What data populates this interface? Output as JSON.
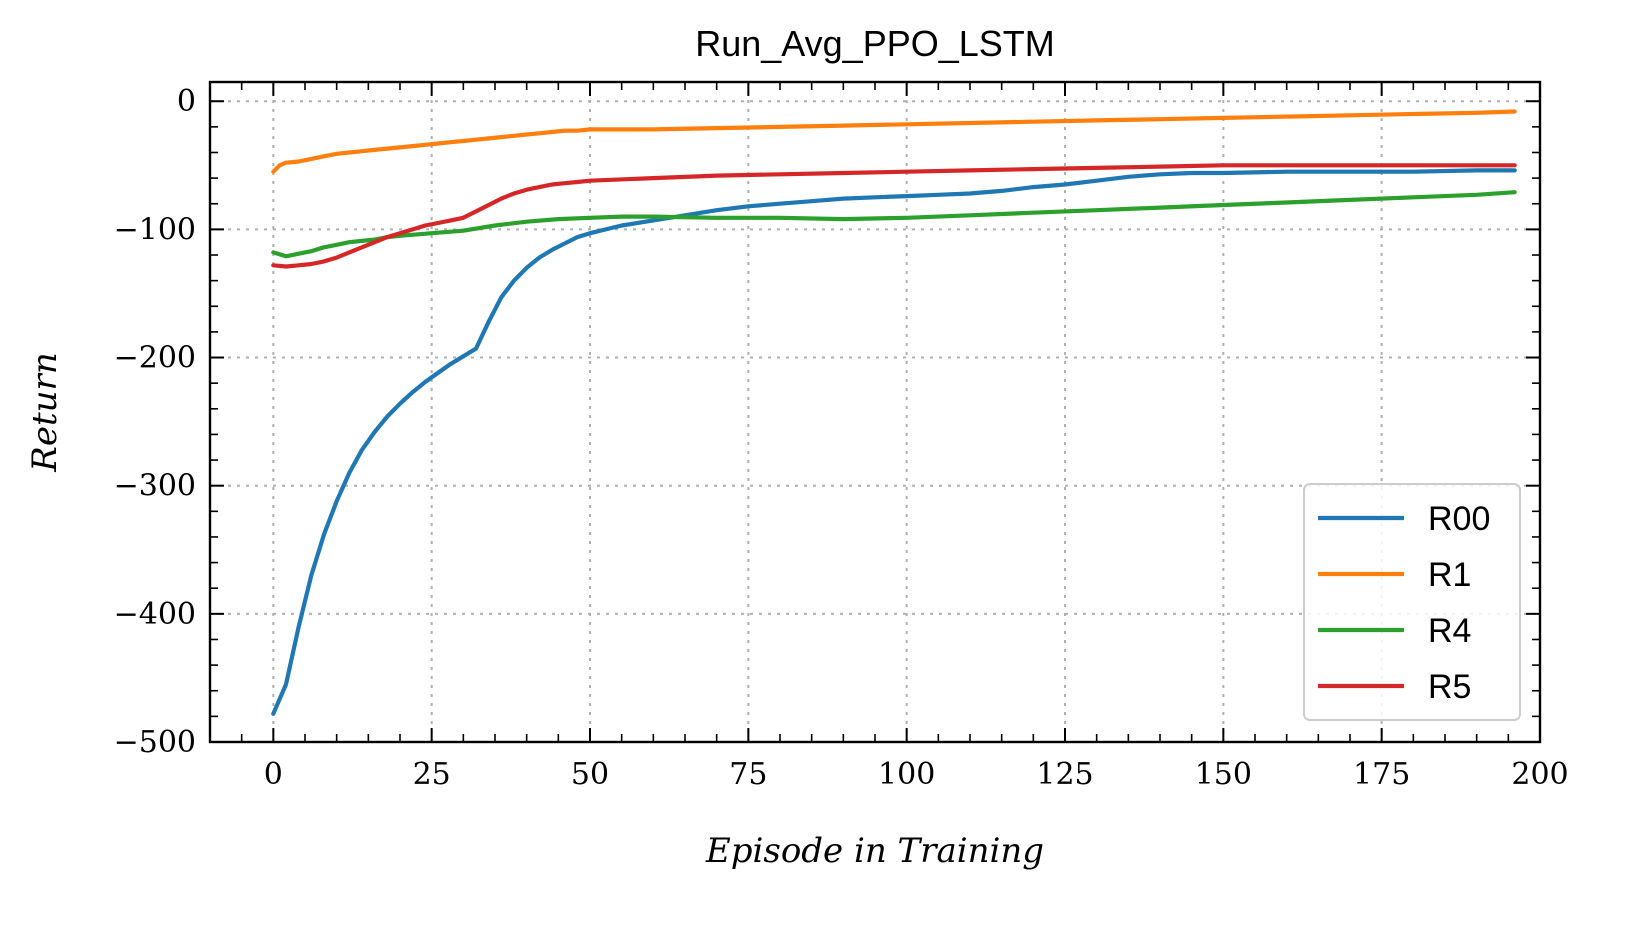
{
  "chart_data": {
    "type": "line",
    "title": "Run_Avg_PPO_LSTM",
    "xlabel": "Episode in Training",
    "ylabel": "Return",
    "xlim": [
      -10,
      200
    ],
    "ylim": [
      -500,
      15
    ],
    "xticks": [
      0,
      25,
      50,
      75,
      100,
      125,
      150,
      175,
      200
    ],
    "yticks": [
      0,
      -100,
      -200,
      -300,
      -400,
      -500
    ],
    "xtick_labels": [
      "0",
      "25",
      "50",
      "75",
      "100",
      "125",
      "150",
      "175",
      "200"
    ],
    "ytick_labels": [
      "0",
      "−100",
      "−200",
      "−300",
      "−400",
      "−500"
    ],
    "grid": true,
    "legend_position": "lower-right",
    "series": [
      {
        "name": "R00",
        "color": "#1f77b4",
        "x": [
          0,
          2,
          4,
          6,
          8,
          10,
          12,
          14,
          16,
          18,
          20,
          22,
          24,
          26,
          28,
          30,
          32,
          34,
          36,
          38,
          40,
          42,
          44,
          46,
          48,
          50,
          55,
          60,
          65,
          70,
          75,
          80,
          85,
          90,
          95,
          100,
          105,
          110,
          115,
          120,
          125,
          130,
          135,
          140,
          145,
          150,
          160,
          170,
          180,
          190,
          196
        ],
        "y": [
          -478,
          -455,
          -410,
          -370,
          -338,
          -312,
          -290,
          -272,
          -258,
          -246,
          -236,
          -227,
          -219,
          -212,
          -205,
          -199,
          -193,
          -172,
          -153,
          -140,
          -130,
          -122,
          -116,
          -111,
          -106,
          -103,
          -97,
          -93,
          -89,
          -85,
          -82,
          -80,
          -78,
          -76,
          -75,
          -74,
          -73,
          -72,
          -70,
          -67,
          -65,
          -62,
          -59,
          -57,
          -56,
          -56,
          -55,
          -55,
          -55,
          -54,
          -54
        ]
      },
      {
        "name": "R1",
        "color": "#ff7f0e",
        "x": [
          0,
          1,
          2,
          4,
          6,
          8,
          10,
          12,
          14,
          16,
          18,
          20,
          22,
          24,
          26,
          28,
          30,
          32,
          34,
          36,
          38,
          40,
          42,
          44,
          46,
          48,
          50,
          60,
          70,
          80,
          90,
          100,
          110,
          120,
          130,
          140,
          150,
          160,
          170,
          180,
          190,
          196
        ],
        "y": [
          -55,
          -50,
          -48,
          -47,
          -45,
          -43,
          -41,
          -40,
          -39,
          -38,
          -37,
          -36,
          -35,
          -34,
          -33,
          -32,
          -31,
          -30,
          -29,
          -28,
          -27,
          -26,
          -25,
          -24,
          -23,
          -23,
          -22,
          -22,
          -21,
          -20,
          -19,
          -18,
          -17,
          -16,
          -15,
          -14,
          -13,
          -12,
          -11,
          -10,
          -9,
          -8
        ]
      },
      {
        "name": "R4",
        "color": "#2ca02c",
        "x": [
          0,
          2,
          4,
          6,
          8,
          10,
          12,
          14,
          16,
          18,
          20,
          25,
          30,
          35,
          40,
          45,
          50,
          55,
          60,
          70,
          80,
          90,
          100,
          110,
          120,
          130,
          140,
          150,
          160,
          170,
          180,
          190,
          196
        ],
        "y": [
          -118,
          -121,
          -119,
          -117,
          -114,
          -112,
          -110,
          -109,
          -108,
          -106,
          -105,
          -103,
          -101,
          -97,
          -94,
          -92,
          -91,
          -90,
          -90,
          -91,
          -91,
          -92,
          -91,
          -89,
          -87,
          -85,
          -83,
          -81,
          -79,
          -77,
          -75,
          -73,
          -71
        ]
      },
      {
        "name": "R5",
        "color": "#d62728",
        "x": [
          0,
          2,
          4,
          6,
          8,
          10,
          12,
          14,
          16,
          18,
          20,
          22,
          24,
          26,
          28,
          30,
          32,
          34,
          36,
          38,
          40,
          42,
          44,
          46,
          48,
          50,
          60,
          70,
          80,
          90,
          100,
          110,
          120,
          130,
          140,
          150,
          160,
          170,
          180,
          190,
          196
        ],
        "y": [
          -128,
          -129,
          -128,
          -127,
          -125,
          -122,
          -118,
          -114,
          -110,
          -106,
          -103,
          -100,
          -97,
          -95,
          -93,
          -91,
          -86,
          -81,
          -76,
          -72,
          -69,
          -67,
          -65,
          -64,
          -63,
          -62,
          -60,
          -58,
          -57,
          -56,
          -55,
          -54,
          -53,
          -52,
          -51,
          -50,
          -50,
          -50,
          -50,
          -50,
          -50
        ]
      }
    ]
  }
}
